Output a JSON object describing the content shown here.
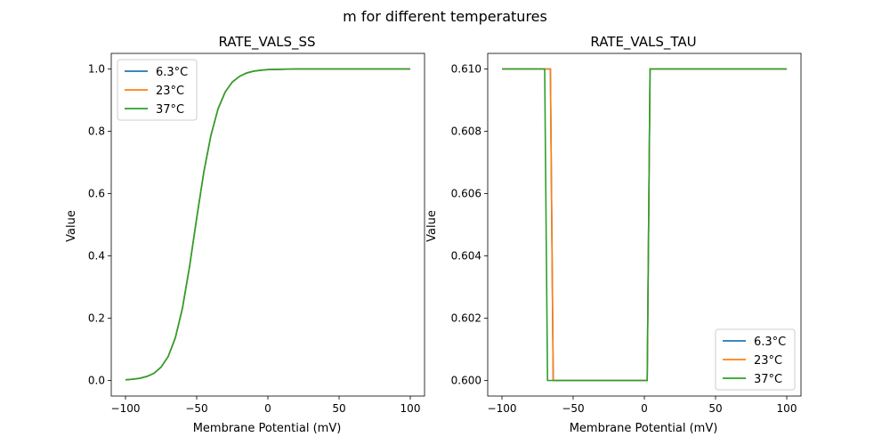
{
  "figure": {
    "suptitle": "m for different temperatures"
  },
  "colors": {
    "s1": "#1f77b4",
    "s2": "#ff7f0e",
    "s3": "#2ca02c"
  },
  "chart_data": [
    {
      "type": "line",
      "title": "RATE_VALS_SS",
      "xlabel": "Membrane Potential (mV)",
      "ylabel": "Value",
      "xlim": [
        -110,
        110
      ],
      "ylim": [
        -0.05,
        1.05
      ],
      "xticks": [
        -100,
        -50,
        0,
        50,
        100
      ],
      "xtick_labels": [
        "−100",
        "−50",
        "0",
        "50",
        "100"
      ],
      "yticks": [
        0.0,
        0.2,
        0.4,
        0.6,
        0.8,
        1.0
      ],
      "ytick_labels": [
        "0.0",
        "0.2",
        "0.4",
        "0.6",
        "0.8",
        "1.0"
      ],
      "legend_loc": "upper left",
      "x": [
        -100,
        -95,
        -90,
        -85,
        -80,
        -75,
        -70,
        -65,
        -60,
        -55,
        -50,
        -45,
        -40,
        -35,
        -30,
        -25,
        -20,
        -15,
        -10,
        -5,
        0,
        10,
        20,
        30,
        40,
        50,
        60,
        70,
        80,
        90,
        100
      ],
      "series": [
        {
          "name": "6.3°C",
          "color_key": "s1",
          "values": [
            0.002,
            0.004,
            0.007,
            0.013,
            0.023,
            0.043,
            0.077,
            0.137,
            0.232,
            0.366,
            0.521,
            0.669,
            0.787,
            0.872,
            0.926,
            0.958,
            0.976,
            0.987,
            0.993,
            0.996,
            0.998,
            0.999,
            1.0,
            1.0,
            1.0,
            1.0,
            1.0,
            1.0,
            1.0,
            1.0,
            1.0
          ]
        },
        {
          "name": "23°C",
          "color_key": "s2",
          "values": [
            0.002,
            0.004,
            0.007,
            0.013,
            0.023,
            0.043,
            0.077,
            0.137,
            0.232,
            0.366,
            0.521,
            0.669,
            0.787,
            0.872,
            0.926,
            0.958,
            0.976,
            0.987,
            0.993,
            0.996,
            0.998,
            0.999,
            1.0,
            1.0,
            1.0,
            1.0,
            1.0,
            1.0,
            1.0,
            1.0,
            1.0
          ]
        },
        {
          "name": "37°C",
          "color_key": "s3",
          "values": [
            0.002,
            0.004,
            0.007,
            0.013,
            0.023,
            0.043,
            0.077,
            0.137,
            0.232,
            0.366,
            0.521,
            0.669,
            0.787,
            0.872,
            0.926,
            0.958,
            0.976,
            0.987,
            0.993,
            0.996,
            0.998,
            0.999,
            1.0,
            1.0,
            1.0,
            1.0,
            1.0,
            1.0,
            1.0,
            1.0,
            1.0
          ]
        }
      ]
    },
    {
      "type": "line",
      "title": "RATE_VALS_TAU",
      "xlabel": "Membrane Potential (mV)",
      "ylabel": "Value",
      "xlim": [
        -110,
        110
      ],
      "ylim": [
        0.5995,
        0.6105
      ],
      "xticks": [
        -100,
        -50,
        0,
        50,
        100
      ],
      "xtick_labels": [
        "−100",
        "−50",
        "0",
        "50",
        "100"
      ],
      "yticks": [
        0.6,
        0.602,
        0.604,
        0.606,
        0.608,
        0.61
      ],
      "ytick_labels": [
        "0.600",
        "0.602",
        "0.604",
        "0.606",
        "0.608",
        "0.610"
      ],
      "legend_loc": "lower right",
      "series": [
        {
          "name": "6.3°C",
          "color_key": "s1",
          "x": [
            -100,
            -66,
            -64,
            2,
            4,
            100
          ],
          "values": [
            0.61,
            0.61,
            0.6,
            0.6,
            0.61,
            0.61
          ]
        },
        {
          "name": "23°C",
          "color_key": "s2",
          "x": [
            -100,
            -66,
            -64,
            2,
            4,
            100
          ],
          "values": [
            0.61,
            0.61,
            0.6,
            0.6,
            0.61,
            0.61
          ]
        },
        {
          "name": "37°C",
          "color_key": "s3",
          "x": [
            -100,
            -70,
            -68,
            2,
            4,
            100
          ],
          "values": [
            0.61,
            0.61,
            0.6,
            0.6,
            0.61,
            0.61
          ]
        }
      ]
    }
  ]
}
